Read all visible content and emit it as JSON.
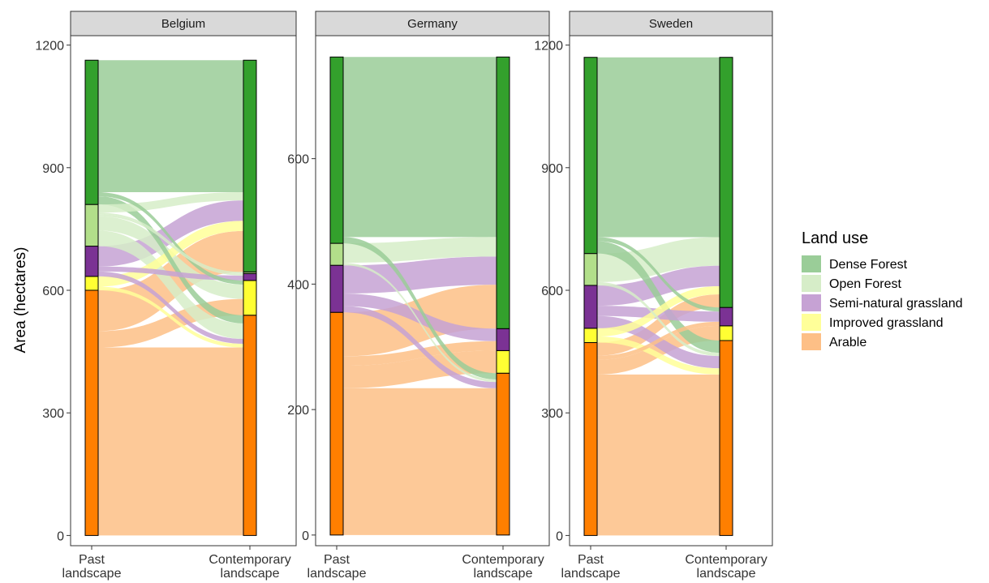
{
  "chart_data": {
    "type": "alluvial",
    "ylabel": "Area (hectares)",
    "x_axis": [
      "Past\nlandscape",
      "Contemporary\nlandscape"
    ],
    "legend": {
      "title": "Land use",
      "position": "right",
      "items": [
        {
          "name": "Dense Forest",
          "color": "#33a02c"
        },
        {
          "name": "Open Forest",
          "color": "#b2df8a"
        },
        {
          "name": "Semi-natural grassland",
          "color": "#7b3294"
        },
        {
          "name": "Improved grassland",
          "color": "#ffff33"
        },
        {
          "name": "Arable",
          "color": "#ff7f00"
        }
      ]
    },
    "panels": [
      {
        "name": "Belgium",
        "ylim": [
          -25,
          1223
        ],
        "yticks": [
          0,
          300,
          600,
          900,
          1200
        ],
        "past": {
          "Dense Forest": 353,
          "Open Forest": 102,
          "Semi-natural grassland": 74,
          "Improved grassland": 34,
          "Arable": 600
        },
        "contemporary": {
          "Dense Forest": 518,
          "Open Forest": 4,
          "Semi-natural grassland": 17,
          "Improved grassland": 85,
          "Arable": 539
        },
        "flows": [
          {
            "from": "Dense Forest",
            "to": "Dense Forest",
            "value": 323
          },
          {
            "from": "Dense Forest",
            "to": "Arable",
            "value": 20
          },
          {
            "from": "Dense Forest",
            "to": "Improved grassland",
            "value": 10
          },
          {
            "from": "Open Forest",
            "to": "Dense Forest",
            "value": 20
          },
          {
            "from": "Open Forest",
            "to": "Open Forest",
            "value": 4
          },
          {
            "from": "Open Forest",
            "to": "Arable",
            "value": 38
          },
          {
            "from": "Open Forest",
            "to": "Semi-natural grassland",
            "value": 5
          },
          {
            "from": "Open Forest",
            "to": "Improved grassland",
            "value": 35
          },
          {
            "from": "Semi-natural grassland",
            "to": "Dense Forest",
            "value": 50
          },
          {
            "from": "Semi-natural grassland",
            "to": "Semi-natural grassland",
            "value": 12
          },
          {
            "from": "Semi-natural grassland",
            "to": "Arable",
            "value": 12
          },
          {
            "from": "Improved grassland",
            "to": "Dense Forest",
            "value": 25
          },
          {
            "from": "Improved grassland",
            "to": "Arable",
            "value": 9
          },
          {
            "from": "Arable",
            "to": "Dense Forest",
            "value": 100
          },
          {
            "from": "Arable",
            "to": "Improved grassland",
            "value": 40
          },
          {
            "from": "Arable",
            "to": "Arable",
            "value": 460
          }
        ]
      },
      {
        "name": "Germany",
        "ylim": [
          -17,
          796
        ],
        "yticks": [
          0,
          200,
          400,
          600
        ],
        "past": {
          "Dense Forest": 297,
          "Open Forest": 35,
          "Semi-natural grassland": 75,
          "Improved grassland": 0,
          "Arable": 355
        },
        "contemporary": {
          "Dense Forest": 433,
          "Open Forest": 0,
          "Semi-natural grassland": 35,
          "Improved grassland": 36,
          "Arable": 258
        },
        "flows": [
          {
            "from": "Dense Forest",
            "to": "Dense Forest",
            "value": 287
          },
          {
            "from": "Dense Forest",
            "to": "Arable",
            "value": 10
          },
          {
            "from": "Open Forest",
            "to": "Dense Forest",
            "value": 31
          },
          {
            "from": "Open Forest",
            "to": "Arable",
            "value": 4
          },
          {
            "from": "Semi-natural grassland",
            "to": "Dense Forest",
            "value": 45
          },
          {
            "from": "Semi-natural grassland",
            "to": "Semi-natural grassland",
            "value": 20
          },
          {
            "from": "Semi-natural grassland",
            "to": "Arable",
            "value": 10
          },
          {
            "from": "Arable",
            "to": "Dense Forest",
            "value": 70
          },
          {
            "from": "Arable",
            "to": "Semi-natural grassland",
            "value": 15
          },
          {
            "from": "Arable",
            "to": "Improved grassland",
            "value": 36
          },
          {
            "from": "Arable",
            "to": "Arable",
            "value": 234
          }
        ]
      },
      {
        "name": "Sweden",
        "ylim": [
          -25,
          1223
        ],
        "yticks": [
          0,
          300,
          600,
          900,
          1200
        ],
        "past": {
          "Dense Forest": 480,
          "Open Forest": 78,
          "Semi-natural grassland": 105,
          "Improved grassland": 35,
          "Arable": 472
        },
        "contemporary": {
          "Dense Forest": 612,
          "Open Forest": 0,
          "Semi-natural grassland": 45,
          "Improved grassland": 36,
          "Arable": 477
        },
        "flows": [
          {
            "from": "Dense Forest",
            "to": "Dense Forest",
            "value": 440
          },
          {
            "from": "Dense Forest",
            "to": "Arable",
            "value": 30
          },
          {
            "from": "Dense Forest",
            "to": "Semi-natural grassland",
            "value": 10
          },
          {
            "from": "Open Forest",
            "to": "Dense Forest",
            "value": 70
          },
          {
            "from": "Open Forest",
            "to": "Arable",
            "value": 8
          },
          {
            "from": "Semi-natural grassland",
            "to": "Dense Forest",
            "value": 50
          },
          {
            "from": "Semi-natural grassland",
            "to": "Semi-natural grassland",
            "value": 25
          },
          {
            "from": "Semi-natural grassland",
            "to": "Arable",
            "value": 30
          },
          {
            "from": "Improved grassland",
            "to": "Dense Forest",
            "value": 20
          },
          {
            "from": "Improved grassland",
            "to": "Arable",
            "value": 15
          },
          {
            "from": "Arable",
            "to": "Dense Forest",
            "value": 32
          },
          {
            "from": "Arable",
            "to": "Semi-natural grassland",
            "value": 10
          },
          {
            "from": "Arable",
            "to": "Improved grassland",
            "value": 36
          },
          {
            "from": "Arable",
            "to": "Arable",
            "value": 394
          }
        ]
      }
    ]
  }
}
